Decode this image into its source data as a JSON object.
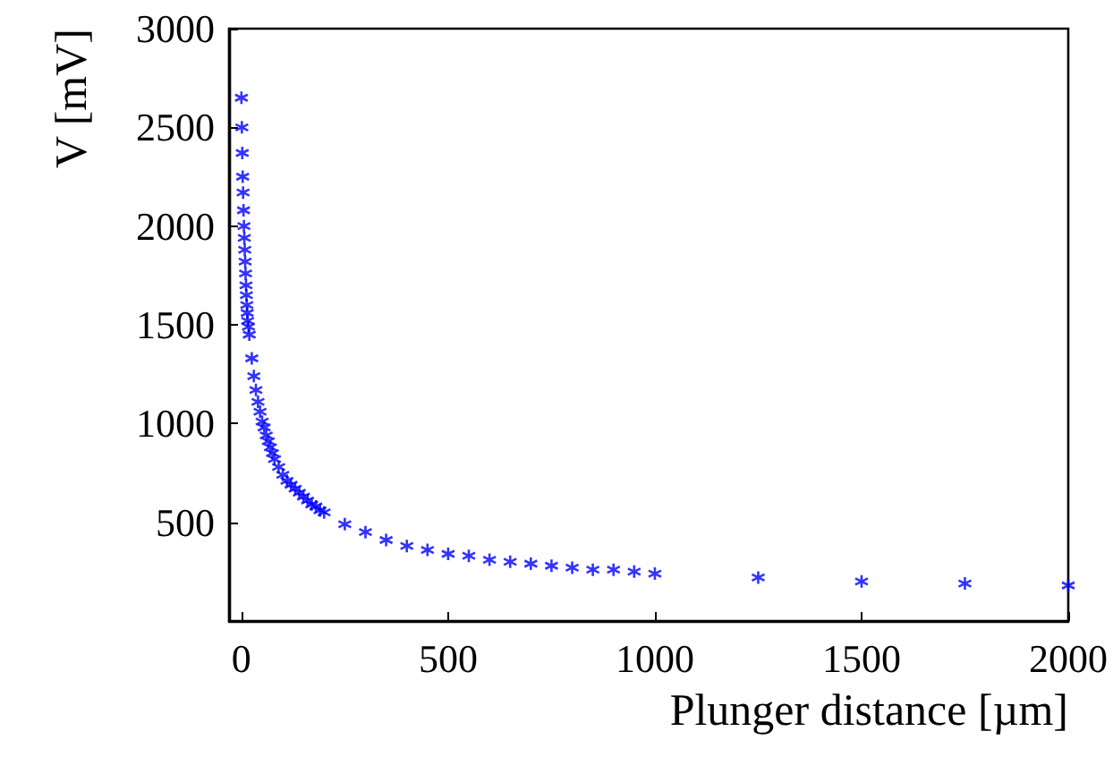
{
  "chart_data": {
    "type": "scatter",
    "xlabel": "Plunger distance [µm]",
    "ylabel": "V [mV]",
    "x": [
      0,
      1,
      2,
      3,
      4,
      5,
      6,
      7,
      8,
      9,
      10,
      11,
      12,
      13,
      14,
      15,
      17,
      19,
      25,
      30,
      35,
      40,
      45,
      50,
      55,
      60,
      65,
      70,
      75,
      80,
      90,
      100,
      110,
      120,
      130,
      140,
      150,
      160,
      170,
      180,
      190,
      200,
      250,
      300,
      350,
      400,
      450,
      500,
      550,
      600,
      650,
      700,
      750,
      800,
      850,
      900,
      950,
      1000,
      1250,
      1500,
      1750,
      2000
    ],
    "series": [
      {
        "color": "#0000ff",
        "values": [
          2650,
          2500,
          2370,
          2250,
          2170,
          2080,
          2000,
          1940,
          1880,
          1820,
          1760,
          1700,
          1650,
          1600,
          1560,
          1520,
          1490,
          1450,
          1330,
          1240,
          1170,
          1110,
          1060,
          1010,
          980,
          940,
          910,
          880,
          850,
          820,
          780,
          740,
          710,
          690,
          670,
          650,
          630,
          610,
          590,
          580,
          560,
          550,
          490,
          450,
          410,
          380,
          360,
          340,
          330,
          310,
          300,
          290,
          280,
          270,
          260,
          260,
          250,
          240,
          220,
          200,
          190,
          180
        ]
      }
    ],
    "xlim": [
      -30,
      2000
    ],
    "xticks": [
      0,
      500,
      1000,
      1500,
      2000
    ],
    "ylim": [
      0,
      3000
    ],
    "yticks": [
      500,
      1000,
      1500,
      2000,
      2500,
      3000
    ],
    "grid": false,
    "marker": "cross"
  }
}
